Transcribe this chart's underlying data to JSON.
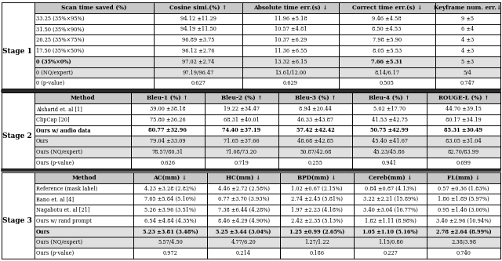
{
  "stage1_header": [
    "Scan time saved (%)",
    "Cosine simi.(%) ↑",
    "Absolute time err.(s) ↓",
    "Correct time err.(s) ↓",
    "Keyframe num. err.↓"
  ],
  "stage1_rows": [
    [
      "33.25 (35%×95%)",
      "94.12 ±11.29",
      "11.96 ±5.18",
      "9.46 ±4.58",
      "9 ±5"
    ],
    [
      "31.50 (35%×90%)",
      "94.19 ±11.50",
      "10.57 ±4.81",
      "8.50 ±4.53",
      "6 ±4"
    ],
    [
      "26.25 (35%×75%)",
      "96.89 ±3.75",
      "10.37 ±6.29",
      "7.98 ±5.90",
      "4 ±3"
    ],
    [
      "17.50 (35%×50%)",
      "96.12 ±2.76",
      "11.36 ±6.55",
      "8.05 ±5.53",
      "4 ±3"
    ],
    [
      "0 (35%×0%)",
      "97.02 ±2.74",
      "13.32 ±6.15",
      "7.66 ±5.31",
      "5 ±3"
    ],
    [
      "0 (NQ/expert)",
      "97.19/96.47",
      "13.61/12.00",
      "8.14/6.17",
      "5/4"
    ],
    [
      "0 (p-value)",
      "0.627",
      "0.629",
      "0.505",
      "0.747"
    ]
  ],
  "stage1_bold_row": 4,
  "stage1_bold_cols_in_bold_row": [
    0,
    3
  ],
  "stage1_gray_rows": [
    5,
    6
  ],
  "stage2_header": [
    "Method",
    "Bleu-1 (%) ↑",
    "Bleu-2 (%) ↑",
    "Bleu-3 (%) ↑",
    "Bleu-4 (%) ↑",
    "ROUGE-L (%) ↑"
  ],
  "stage2_rows": [
    [
      "Alsharid et. al [1]",
      "39.00 ±38.18",
      "19.22 ±34.47",
      "8.94 ±20.44",
      "5.02 ±17.70",
      "44.70 ±39.15"
    ],
    [
      "ClipCap [20]",
      "75.80 ±36.26",
      "68.31 ±40.01",
      "46.33 ±43.87",
      "41.53 ±42.75",
      "80.17 ±34.19"
    ],
    [
      "Ours w/ audio data",
      "80.77 ±32.96",
      "74.40 ±37.19",
      "57.42 ±42.42",
      "50.75 ±42.99",
      "85.31 ±30.49"
    ],
    [
      "Ours",
      "79.04 ±33.09",
      "71.65 ±37.66",
      "48.68 ±42.85",
      "45.40 ±41.67",
      "83.05 ±31.04"
    ],
    [
      "Ours (NQ/expert)",
      "78.57/80.31",
      "71.08/73.20",
      "50.87/42.68",
      "45.23/45.86",
      "82.70/83.99"
    ],
    [
      "Ours (p-value)",
      "0.626",
      "0.719",
      "0.255",
      "0.941",
      "0.699"
    ]
  ],
  "stage2_bold_row": 2,
  "stage2_bold_cols_in_bold_row": [
    0,
    1,
    2,
    3,
    4,
    5
  ],
  "stage2_gray_rows": [
    4,
    5
  ],
  "stage3_header": [
    "Method",
    "AC(mm) ↓",
    "HC(mm) ↓",
    "BPD(mm) ↓",
    "Cereb(mm) ↓",
    "FL(mm) ↓"
  ],
  "stage3_rows": [
    [
      "Reference (mask label)",
      "4.23 ±3.28 (2.82%)",
      "4.46 ±2.72 (2.58%)",
      "1.02 ±0.67 (2.15%)",
      "0.84 ±0.87 (4.13%)",
      "0.57 ±0.36 (1.83%)"
    ],
    [
      "Bano et. al [4]",
      "7.65 ±5.84 (5.10%)",
      "6.77 ±3.70 (3.93%)",
      "2.74 ±2.45 (5.81%)",
      "3.22 ±2.21 (15.89%)",
      "1.86 ±1.89 (5.97%)"
    ],
    [
      "Nagabotu et. al [21]",
      "5.26 ±3.96 (3.51%)",
      "7.38 ±6.44 (4.28%)",
      "1.97 ±2.23 (4.18%)",
      "3.40 ±3.04 (16.77%)",
      "0.95 ±1.46 (3.06%)"
    ],
    [
      "Ours w/ rand prompt",
      "6.54 ±4.84 (4.35%)",
      "8.46 ±4.29 (4.90%)",
      "2.42 ±2.35 (5.13%)",
      "1.82 ±1.11 (8.98%)",
      "3.40 ±2.96 (10.94%)"
    ],
    [
      "Ours",
      "5.23 ±3.81 (3.48%)",
      "5.25 ±3.44 (3.04%)",
      "1.25 ±0.99 (2.65%)",
      "1.05 ±1.10 (5.16%)",
      "2.78 ±2.64 (8.99%)"
    ],
    [
      "Ours (NQ/expert)",
      "5.57/4.50",
      "4.77/6.20",
      "1.27/1.22",
      "1.15/0.86",
      "2.38/3.98"
    ],
    [
      "Ours (p-value)",
      "0.972",
      "0.214",
      "0.186",
      "0.227",
      "0.740"
    ]
  ],
  "stage3_bold_row": 4,
  "stage3_bold_cols_in_bold_row": [
    0,
    1,
    2,
    3,
    4,
    5
  ],
  "stage3_gray_rows": [
    5,
    6
  ],
  "gray_bg": "#e0e0e0",
  "header_bg": "#c8c8c8",
  "stage_label_1": "Stage 1",
  "stage_label_2": "Stage 2",
  "stage_label_3": "Stage 3"
}
